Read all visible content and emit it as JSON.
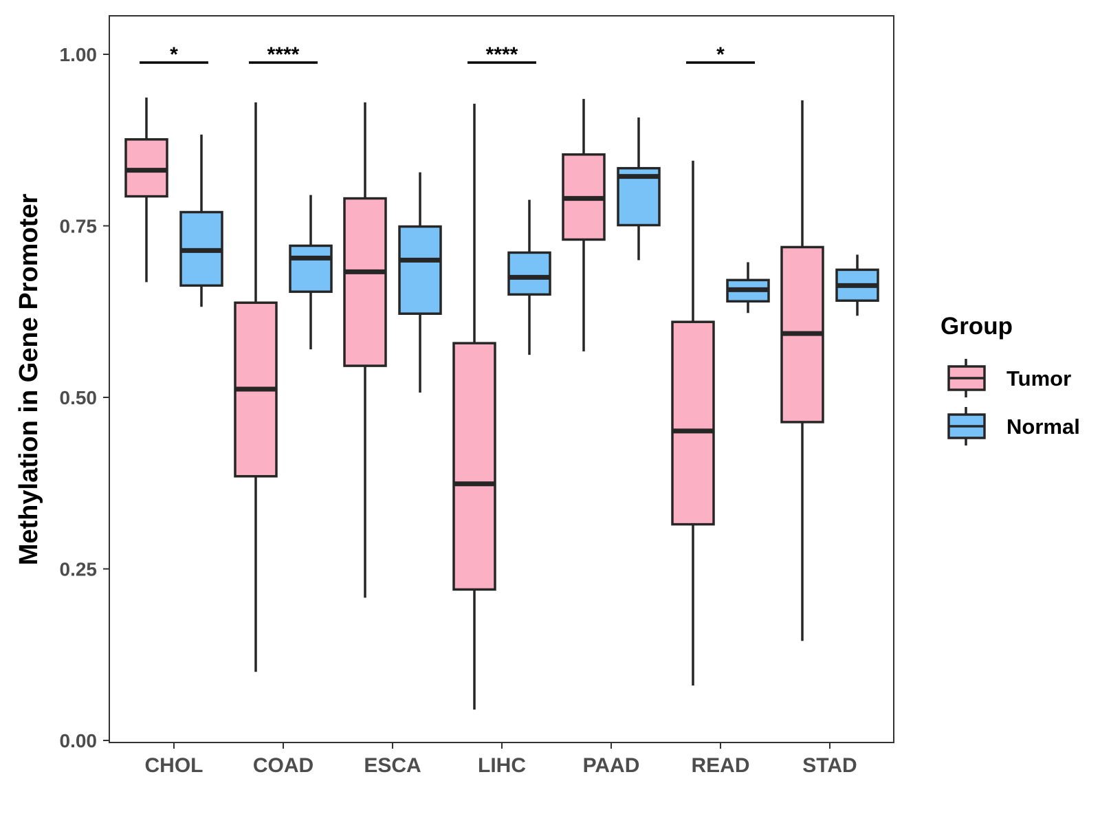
{
  "chart_data": {
    "type": "boxplot",
    "title": "",
    "xlabel": "",
    "ylabel": "Methylation in Gene Promoter",
    "ylim": [
      -0.01,
      1.05
    ],
    "yticks": [
      0.0,
      0.25,
      0.5,
      0.75,
      1.0
    ],
    "ytick_labels": [
      "0.00",
      "0.25",
      "0.50",
      "0.75",
      "1.00"
    ],
    "grid": false,
    "categories": [
      "CHOL",
      "COAD",
      "ESCA",
      "LIHC",
      "PAAD",
      "READ",
      "STAD"
    ],
    "legend": {
      "title": "Group",
      "position": "right",
      "items": [
        {
          "name": "Tumor",
          "color": "#FBB0C3"
        },
        {
          "name": "Normal",
          "color": "#78C2F8"
        }
      ]
    },
    "series": [
      {
        "name": "Tumor",
        "color": "#FBB0C3",
        "boxes": [
          {
            "category": "CHOL",
            "min": 0.668,
            "q1": 0.793,
            "median": 0.831,
            "q3": 0.876,
            "max": 0.937
          },
          {
            "category": "COAD",
            "min": 0.1,
            "q1": 0.385,
            "median": 0.512,
            "q3": 0.638,
            "max": 0.93
          },
          {
            "category": "ESCA",
            "min": 0.208,
            "q1": 0.546,
            "median": 0.683,
            "q3": 0.79,
            "max": 0.93
          },
          {
            "category": "LIHC",
            "min": 0.045,
            "q1": 0.22,
            "median": 0.374,
            "q3": 0.579,
            "max": 0.928
          },
          {
            "category": "PAAD",
            "min": 0.567,
            "q1": 0.73,
            "median": 0.79,
            "q3": 0.854,
            "max": 0.935
          },
          {
            "category": "READ",
            "min": 0.08,
            "q1": 0.315,
            "median": 0.451,
            "q3": 0.61,
            "max": 0.845
          },
          {
            "category": "STAD",
            "min": 0.145,
            "q1": 0.464,
            "median": 0.593,
            "q3": 0.719,
            "max": 0.933
          }
        ]
      },
      {
        "name": "Normal",
        "color": "#78C2F8",
        "boxes": [
          {
            "category": "CHOL",
            "min": 0.632,
            "q1": 0.663,
            "median": 0.714,
            "q3": 0.77,
            "max": 0.883
          },
          {
            "category": "COAD",
            "min": 0.57,
            "q1": 0.654,
            "median": 0.703,
            "q3": 0.721,
            "max": 0.795
          },
          {
            "category": "ESCA",
            "min": 0.507,
            "q1": 0.622,
            "median": 0.7,
            "q3": 0.749,
            "max": 0.828
          },
          {
            "category": "LIHC",
            "min": 0.562,
            "q1": 0.65,
            "median": 0.675,
            "q3": 0.711,
            "max": 0.788
          },
          {
            "category": "PAAD",
            "min": 0.7,
            "q1": 0.751,
            "median": 0.822,
            "q3": 0.834,
            "max": 0.908
          },
          {
            "category": "READ",
            "min": 0.623,
            "q1": 0.64,
            "median": 0.657,
            "q3": 0.671,
            "max": 0.697
          },
          {
            "category": "STAD",
            "min": 0.619,
            "q1": 0.641,
            "median": 0.663,
            "q3": 0.686,
            "max": 0.708
          }
        ]
      }
    ],
    "significance": [
      {
        "category": "CHOL",
        "label": "*",
        "y": 0.988
      },
      {
        "category": "COAD",
        "label": "****",
        "y": 0.988
      },
      {
        "category": "LIHC",
        "label": "****",
        "y": 0.988
      },
      {
        "category": "READ",
        "label": "*",
        "y": 0.988
      }
    ]
  }
}
